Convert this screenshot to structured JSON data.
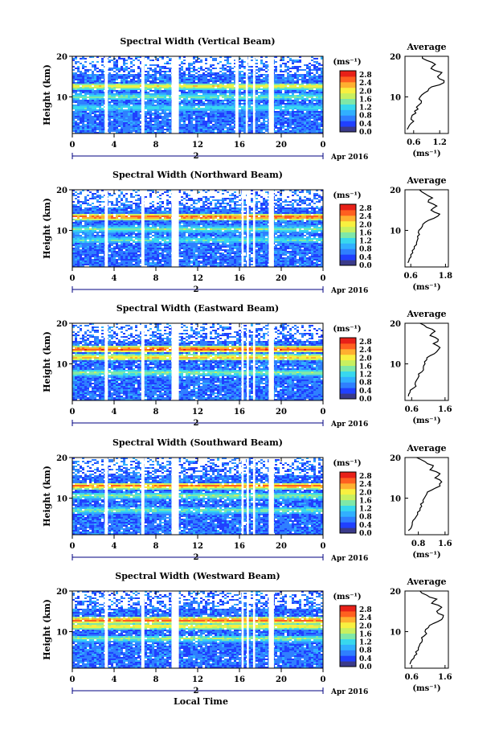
{
  "figure": {
    "x_axis_label": "Local Time",
    "date_label": "Apr 2016",
    "day_label": "2",
    "avg_title": "Average",
    "y_axis_label": "Height (km)",
    "colorbar_unit": "(ms⁻¹)",
    "avg_unit": "(ms⁻¹)"
  },
  "colors": {
    "scale": [
      "#3a3a8a",
      "#2040ff",
      "#2f7fff",
      "#31b0ff",
      "#38d8ee",
      "#7fe8a8",
      "#c8f060",
      "#f8f040",
      "#ffb030",
      "#ff6020",
      "#e82018"
    ],
    "background": "#ffffff",
    "axis": "#000000",
    "day_marker": "#000080"
  },
  "chart_data": [
    {
      "type": "heatmap",
      "title": "Spectral Width (Vertical Beam)",
      "xlabel": "Local Time",
      "ylabel": "Height (km)",
      "x_ticks": [
        "0",
        "4",
        "8",
        "12",
        "16",
        "20",
        "0"
      ],
      "x_range": [
        0,
        24
      ],
      "y_ticks": [
        "10",
        "20"
      ],
      "y_range": [
        1,
        20
      ],
      "colorbar": {
        "label": "(ms⁻¹)",
        "ticks": [
          "0.0",
          "0.4",
          "0.8",
          "1.2",
          "1.6",
          "2.0",
          "2.4",
          "2.8"
        ],
        "range": [
          0,
          3.0
        ]
      },
      "data_gaps_hours": [
        [
          3.1,
          3.4
        ],
        [
          6.6,
          6.9
        ],
        [
          9.5,
          10.2
        ],
        [
          15.6,
          15.9
        ],
        [
          16.6,
          16.8
        ],
        [
          17.3,
          17.5
        ],
        [
          18.8,
          19.3
        ]
      ],
      "high_width_layers": [
        {
          "height_km": 12.8,
          "value": 2.0
        },
        {
          "height_km": 10.2,
          "value": 1.4
        },
        {
          "height_km": 7.5,
          "value": 1.2
        }
      ],
      "average_profile": {
        "title": "Average",
        "xlabel": "(ms⁻¹)",
        "x_ticks": [
          "0.6",
          "1.2"
        ],
        "x_range": [
          0.4,
          1.4
        ],
        "height_km": [
          2,
          3,
          4,
          5,
          6,
          7,
          8,
          9,
          10,
          11,
          12,
          13,
          14,
          15,
          16,
          17,
          18,
          19,
          20
        ],
        "value": [
          0.45,
          0.5,
          0.6,
          0.55,
          0.65,
          0.7,
          0.72,
          0.78,
          0.75,
          0.85,
          0.95,
          1.2,
          1.3,
          1.15,
          1.25,
          1.0,
          1.1,
          0.9,
          0.8
        ]
      }
    },
    {
      "type": "heatmap",
      "title": "Spectral Width (Northward Beam)",
      "xlabel": "Local Time",
      "ylabel": "Height (km)",
      "x_ticks": [
        "0",
        "4",
        "8",
        "12",
        "16",
        "20",
        "0"
      ],
      "x_range": [
        0,
        24
      ],
      "y_ticks": [
        "10",
        "20"
      ],
      "y_range": [
        1,
        20
      ],
      "colorbar": {
        "label": "(ms⁻¹)",
        "ticks": [
          "0.0",
          "0.4",
          "0.8",
          "1.2",
          "1.6",
          "2.0",
          "2.4",
          "2.8"
        ],
        "range": [
          0,
          3.0
        ]
      },
      "data_gaps_hours": [
        [
          3.1,
          3.4
        ],
        [
          6.6,
          6.9
        ],
        [
          9.5,
          10.2
        ],
        [
          16.2,
          16.4
        ],
        [
          16.7,
          16.9
        ],
        [
          17.3,
          17.5
        ],
        [
          18.8,
          19.3
        ]
      ],
      "high_width_layers": [
        {
          "height_km": 13.5,
          "value": 2.6
        },
        {
          "height_km": 10.5,
          "value": 1.4
        },
        {
          "height_km": 7.8,
          "value": 1.3
        }
      ],
      "average_profile": {
        "title": "Average",
        "xlabel": "(ms⁻¹)",
        "x_ticks": [
          "0.6",
          "1.8"
        ],
        "x_range": [
          0.4,
          1.9
        ],
        "height_km": [
          2,
          3,
          4,
          5,
          6,
          7,
          8,
          9,
          10,
          11,
          12,
          13,
          14,
          15,
          16,
          17,
          18,
          19,
          20
        ],
        "value": [
          0.5,
          0.55,
          0.6,
          0.65,
          0.72,
          0.8,
          0.85,
          0.9,
          0.88,
          1.0,
          1.1,
          1.4,
          1.6,
          1.3,
          1.5,
          1.2,
          1.35,
          1.1,
          0.9
        ]
      }
    },
    {
      "type": "heatmap",
      "title": "Spectral Width (Eastward Beam)",
      "xlabel": "Local Time",
      "ylabel": "Height (km)",
      "x_ticks": [
        "0",
        "4",
        "8",
        "12",
        "16",
        "20",
        "0"
      ],
      "x_range": [
        0,
        24
      ],
      "y_ticks": [
        "10",
        "20"
      ],
      "y_range": [
        1,
        20
      ],
      "colorbar": {
        "label": "(ms⁻¹)",
        "ticks": [
          "0.0",
          "0.4",
          "0.8",
          "1.2",
          "1.6",
          "2.0",
          "2.4",
          "2.8"
        ],
        "range": [
          0,
          3.0
        ]
      },
      "data_gaps_hours": [
        [
          3.1,
          3.4
        ],
        [
          6.6,
          6.9
        ],
        [
          9.5,
          10.2
        ],
        [
          16.2,
          16.4
        ],
        [
          16.7,
          16.9
        ],
        [
          17.3,
          17.5
        ],
        [
          18.8,
          19.3
        ]
      ],
      "high_width_layers": [
        {
          "height_km": 13.8,
          "value": 2.7
        },
        {
          "height_km": 11.8,
          "value": 2.2
        },
        {
          "height_km": 8.0,
          "value": 1.5
        }
      ],
      "average_profile": {
        "title": "Average",
        "xlabel": "(ms⁻¹)",
        "x_ticks": [
          "0.6",
          "1.6"
        ],
        "x_range": [
          0.4,
          1.7
        ],
        "height_km": [
          2,
          3,
          4,
          5,
          6,
          7,
          8,
          9,
          10,
          11,
          12,
          13,
          14,
          15,
          16,
          17,
          18,
          19,
          20
        ],
        "value": [
          0.5,
          0.55,
          0.65,
          0.7,
          0.75,
          0.82,
          0.9,
          0.95,
          1.0,
          1.05,
          1.15,
          1.35,
          1.45,
          1.25,
          1.4,
          1.15,
          1.3,
          1.05,
          0.85
        ]
      }
    },
    {
      "type": "heatmap",
      "title": "Spectral Width (Southward Beam)",
      "xlabel": "Local Time",
      "ylabel": "Height (km)",
      "x_ticks": [
        "0",
        "4",
        "8",
        "12",
        "16",
        "20",
        "0"
      ],
      "x_range": [
        0,
        24
      ],
      "y_ticks": [
        "10",
        "20"
      ],
      "y_range": [
        1,
        20
      ],
      "colorbar": {
        "label": "(ms⁻¹)",
        "ticks": [
          "0.0",
          "0.4",
          "0.8",
          "1.2",
          "1.6",
          "2.0",
          "2.4",
          "2.8"
        ],
        "range": [
          0,
          3.0
        ]
      },
      "data_gaps_hours": [
        [
          3.1,
          3.4
        ],
        [
          6.6,
          6.9
        ],
        [
          9.5,
          10.2
        ],
        [
          16.2,
          16.4
        ],
        [
          16.7,
          16.9
        ],
        [
          17.3,
          17.5
        ],
        [
          18.8,
          19.3
        ]
      ],
      "high_width_layers": [
        {
          "height_km": 13.2,
          "value": 2.5
        },
        {
          "height_km": 10.8,
          "value": 1.5
        },
        {
          "height_km": 7.2,
          "value": 1.4
        }
      ],
      "average_profile": {
        "title": "Average",
        "xlabel": "(ms⁻¹)",
        "x_ticks": [
          "0.8",
          "1.6"
        ],
        "x_range": [
          0.4,
          1.7
        ],
        "height_km": [
          2,
          3,
          4,
          5,
          6,
          7,
          8,
          9,
          10,
          11,
          12,
          13,
          14,
          15,
          16,
          17,
          18,
          19,
          20
        ],
        "value": [
          0.5,
          0.6,
          0.62,
          0.7,
          0.78,
          0.85,
          0.9,
          0.95,
          0.98,
          1.05,
          1.2,
          1.45,
          1.5,
          1.3,
          1.45,
          1.15,
          1.25,
          1.0,
          0.75
        ]
      }
    },
    {
      "type": "heatmap",
      "title": "Spectral Width (Westward Beam)",
      "xlabel": "Local Time",
      "ylabel": "Height (km)",
      "x_ticks": [
        "0",
        "4",
        "8",
        "12",
        "16",
        "20",
        "0"
      ],
      "x_range": [
        0,
        24
      ],
      "y_ticks": [
        "10",
        "20"
      ],
      "y_range": [
        1,
        20
      ],
      "colorbar": {
        "label": "(ms⁻¹)",
        "ticks": [
          "0.0",
          "0.4",
          "0.8",
          "1.2",
          "1.6",
          "2.0",
          "2.4",
          "2.8"
        ],
        "range": [
          0,
          3.0
        ]
      },
      "data_gaps_hours": [
        [
          3.1,
          3.4
        ],
        [
          6.6,
          6.9
        ],
        [
          9.5,
          10.2
        ],
        [
          16.2,
          16.4
        ],
        [
          16.7,
          16.9
        ],
        [
          17.3,
          17.5
        ],
        [
          18.8,
          19.3
        ]
      ],
      "high_width_layers": [
        {
          "height_km": 13.0,
          "value": 2.6
        },
        {
          "height_km": 11.5,
          "value": 2.1
        },
        {
          "height_km": 8.5,
          "value": 1.5
        }
      ],
      "average_profile": {
        "title": "Average",
        "xlabel": "(ms⁻¹)",
        "x_ticks": [
          "0.6",
          "1.6"
        ],
        "x_range": [
          0.4,
          1.7
        ],
        "height_km": [
          2,
          3,
          4,
          5,
          6,
          7,
          8,
          9,
          10,
          11,
          12,
          13,
          14,
          15,
          16,
          17,
          18,
          19,
          20
        ],
        "value": [
          0.55,
          0.6,
          0.68,
          0.72,
          0.8,
          0.85,
          0.92,
          0.98,
          1.0,
          1.1,
          1.25,
          1.5,
          1.55,
          1.35,
          1.5,
          1.2,
          1.35,
          1.05,
          0.85
        ]
      }
    }
  ]
}
